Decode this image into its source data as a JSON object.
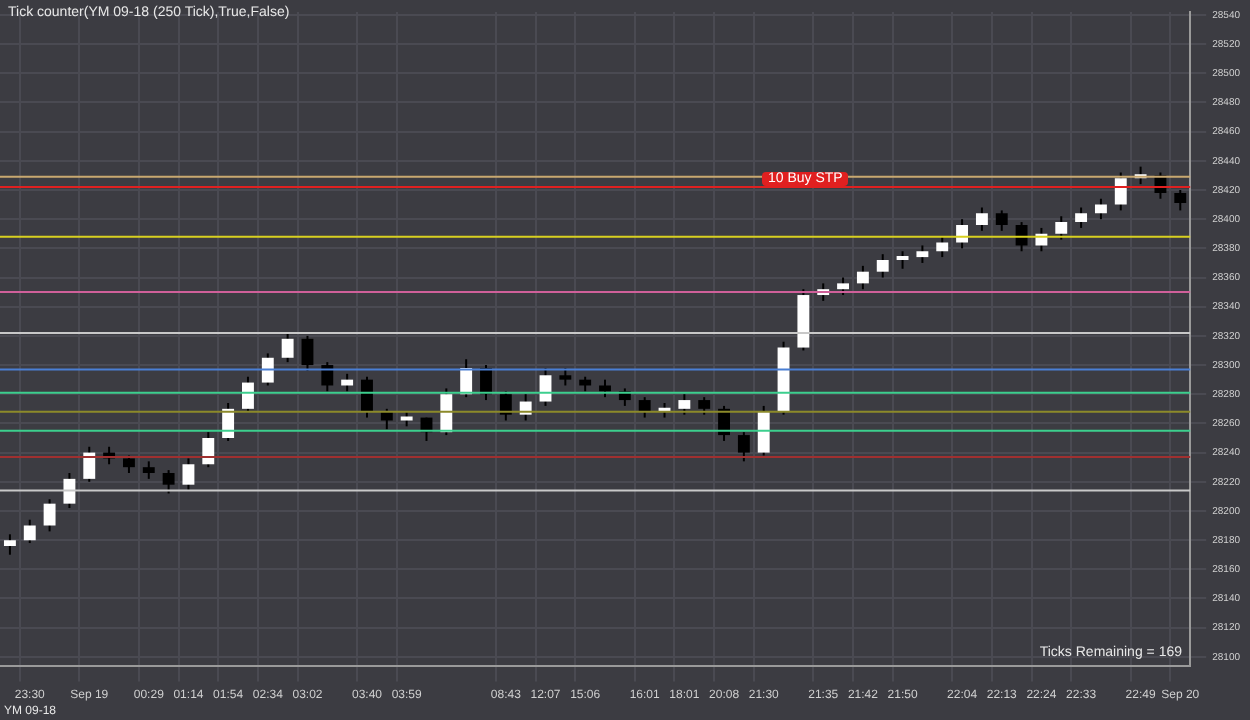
{
  "chart_data": {
    "type": "candlestick",
    "title": "Tick counter(YM 09-18 (250 Tick),True,False)",
    "categories": [
      null,
      "23:30",
      null,
      null,
      "Sep 19",
      null,
      null,
      "00:29",
      null,
      "01:14",
      null,
      "01:54",
      null,
      "02:34",
      null,
      "03:02",
      null,
      null,
      "03:40",
      null,
      "03:59",
      null,
      null,
      null,
      null,
      "08:43",
      null,
      "12:07",
      null,
      "15:06",
      null,
      null,
      "16:01",
      null,
      "18:01",
      null,
      "20:08",
      null,
      "21:30",
      null,
      null,
      "21:35",
      null,
      "21:42",
      null,
      "21:50",
      null,
      null,
      "22:04",
      null,
      "22:13",
      null,
      "22:24",
      null,
      "22:33",
      null,
      null,
      "22:49",
      null,
      "Sep 20"
    ],
    "ohlc": [
      [
        28176,
        28184,
        28170,
        28180
      ],
      [
        28180,
        28194,
        28178,
        28190
      ],
      [
        28190,
        28208,
        28186,
        28205
      ],
      [
        28205,
        28226,
        28202,
        28222
      ],
      [
        28222,
        28244,
        28220,
        28240
      ],
      [
        28240,
        28244,
        28232,
        28236
      ],
      [
        28236,
        28238,
        28226,
        28230
      ],
      [
        28230,
        28234,
        28222,
        28226
      ],
      [
        28226,
        28228,
        28212,
        28218
      ],
      [
        28218,
        28236,
        28214,
        28232
      ],
      [
        28232,
        28254,
        28230,
        28250
      ],
      [
        28250,
        28274,
        28248,
        28270
      ],
      [
        28270,
        28292,
        28268,
        28288
      ],
      [
        28288,
        28308,
        28286,
        28305
      ],
      [
        28305,
        28322,
        28302,
        28318
      ],
      [
        28318,
        28320,
        28296,
        28300
      ],
      [
        28300,
        28302,
        28282,
        28286
      ],
      [
        28286,
        28294,
        28282,
        28290
      ],
      [
        28290,
        28292,
        28264,
        28268
      ],
      [
        28268,
        28270,
        28256,
        28262
      ],
      [
        28262,
        28268,
        28258,
        28264
      ],
      [
        28264,
        28264,
        28248,
        28254
      ],
      [
        28254,
        28284,
        28252,
        28280
      ],
      [
        28280,
        28304,
        28278,
        28298
      ],
      [
        28298,
        28300,
        28276,
        28280
      ],
      [
        28280,
        28282,
        28262,
        28266
      ],
      [
        28266,
        28280,
        28262,
        28275
      ],
      [
        28275,
        28298,
        28272,
        28293
      ],
      [
        28293,
        28298,
        28286,
        28290
      ],
      [
        28290,
        28292,
        28282,
        28286
      ],
      [
        28286,
        28290,
        28278,
        28282
      ],
      [
        28282,
        28284,
        28272,
        28276
      ],
      [
        28276,
        28278,
        28264,
        28268
      ],
      [
        28268,
        28274,
        28264,
        28270
      ],
      [
        28270,
        28280,
        28266,
        28276
      ],
      [
        28276,
        28278,
        28266,
        28270
      ],
      [
        28270,
        28272,
        28248,
        28252
      ],
      [
        28252,
        28254,
        28234,
        28240
      ],
      [
        28240,
        28272,
        28238,
        28268
      ],
      [
        28268,
        28316,
        28266,
        28312
      ],
      [
        28312,
        28352,
        28310,
        28348
      ],
      [
        28348,
        28356,
        28344,
        28352
      ],
      [
        28352,
        28360,
        28348,
        28356
      ],
      [
        28356,
        28368,
        28352,
        28364
      ],
      [
        28364,
        28376,
        28360,
        28372
      ],
      [
        28372,
        28378,
        28366,
        28374
      ],
      [
        28374,
        28382,
        28370,
        28378
      ],
      [
        28378,
        28388,
        28374,
        28384
      ],
      [
        28384,
        28400,
        28380,
        28396
      ],
      [
        28396,
        28408,
        28392,
        28404
      ],
      [
        28404,
        28406,
        28392,
        28396
      ],
      [
        28396,
        28398,
        28378,
        28382
      ],
      [
        28382,
        28394,
        28378,
        28390
      ],
      [
        28390,
        28402,
        28386,
        28398
      ],
      [
        28398,
        28408,
        28394,
        28404
      ],
      [
        28404,
        28414,
        28400,
        28410
      ],
      [
        28410,
        28432,
        28406,
        28428
      ],
      [
        28428,
        28436,
        28424,
        28430
      ],
      [
        28430,
        28432,
        28414,
        28418
      ],
      [
        28418,
        28420,
        28406,
        28411
      ]
    ],
    "ylim": [
      28094,
      28542
    ],
    "yticks": [
      28100,
      28120,
      28140,
      28160,
      28180,
      28200,
      28220,
      28240,
      28260,
      28280,
      28300,
      28320,
      28340,
      28360,
      28380,
      28400,
      28420,
      28440,
      28460,
      28480,
      28500,
      28520,
      28540
    ],
    "grid": true,
    "legend": false,
    "ref_lines": [
      {
        "axis": "y",
        "value": 28322,
        "color": "#c8c8c8"
      },
      {
        "axis": "y",
        "value": 28297,
        "color": "#4a7fd4"
      },
      {
        "axis": "y",
        "value": 28281,
        "color": "#3ccf8e"
      },
      {
        "axis": "y",
        "value": 28268,
        "color": "#8c8a2a"
      },
      {
        "axis": "y",
        "value": 28255,
        "color": "#3ccf8e"
      },
      {
        "axis": "y",
        "value": 28237,
        "color": "#a03030"
      },
      {
        "axis": "y",
        "value": 28214,
        "color": "#c8c8c8"
      },
      {
        "axis": "y",
        "value": 28388,
        "color": "#d8d020"
      },
      {
        "axis": "y",
        "value": 28350,
        "color": "#d0609a"
      },
      {
        "axis": "y",
        "value": 28429,
        "color": "#c8a870"
      },
      {
        "axis": "y",
        "value": 28422,
        "color": "#e02020"
      }
    ],
    "annotations": [
      "Ticks Remaining = 169",
      "YM 09-18",
      "10 Buy STP"
    ]
  }
}
